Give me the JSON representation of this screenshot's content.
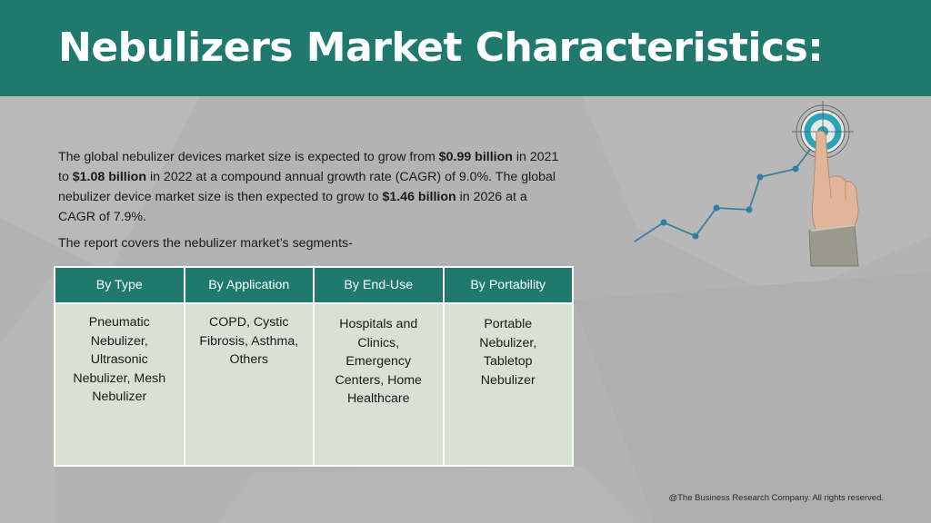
{
  "header": {
    "title": "Nebulizers Market Characteristics:",
    "background_color": "#1f7a6d"
  },
  "intro": {
    "segments": [
      {
        "text": "The global nebulizer devices market size is expected to grow from ",
        "bold": false
      },
      {
        "text": "$0.99 billion",
        "bold": true
      },
      {
        "text": " in 2021 to ",
        "bold": false
      },
      {
        "text": "$1.08 billion",
        "bold": true
      },
      {
        "text": " in 2022 at a compound annual growth rate (CAGR) of 9.0%. The global nebulizer device market size is then expected to grow to ",
        "bold": false
      },
      {
        "text": "$1.46 billion",
        "bold": true
      },
      {
        "text": " in 2026 at a CAGR of 7.9%.",
        "bold": false
      }
    ]
  },
  "segments_intro": "The report covers the nebulizer market’s segments-",
  "segments_table": {
    "headers": [
      "By Type",
      "By Application",
      "By End-Use",
      "By Portability"
    ],
    "cells": [
      "Pneumatic Nebulizer, Ultrasonic Nebulizer, Mesh Nebulizer",
      "COPD, Cystic Fibrosis, Asthma, Others",
      "Hospitals and Clinics, Emergency Centers, Home Healthcare",
      "Portable Nebulizer, Tabletop Nebulizer"
    ],
    "header_color": "#1f7a6d",
    "cell_color": "#d8e1d3"
  },
  "illustration": {
    "icon": "hand-touching-target-growth-chart-icon",
    "line_color": "#3a7fa0",
    "target_color": "#2aa3b8"
  },
  "footer": {
    "copyright": "@The Business Research Company. All rights reserved."
  }
}
